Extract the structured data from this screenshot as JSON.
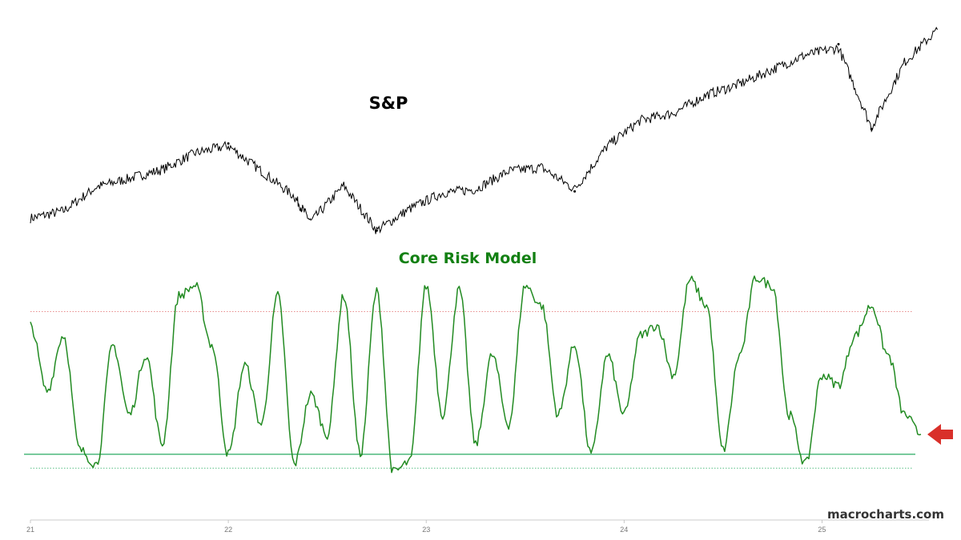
{
  "watermark": "macrocharts.com",
  "colors": {
    "sp_line": "#000000",
    "risk_line": "#228b22",
    "risk_title": "#138013",
    "upper_band": "#e06666",
    "lower_band": "#3cb371",
    "lower_dotted": "#3cb371",
    "arrow": "#d9302a",
    "axis": "#bbbbbb"
  },
  "chart_data": [
    {
      "type": "line",
      "title": "S&P",
      "x": [
        "2021-01",
        "2021-03",
        "2021-05",
        "2021-07",
        "2021-09",
        "2021-11",
        "2022-01",
        "2022-03",
        "2022-05",
        "2022-06",
        "2022-08",
        "2022-10",
        "2022-12",
        "2023-02",
        "2023-04",
        "2023-06",
        "2023-08",
        "2023-10",
        "2023-12",
        "2024-02",
        "2024-04",
        "2024-06",
        "2024-08",
        "2024-10",
        "2024-12",
        "2025-02",
        "2025-04",
        "2025-06",
        "2025-08"
      ],
      "values": [
        3750,
        3850,
        4180,
        4300,
        4420,
        4650,
        4750,
        4400,
        4050,
        3700,
        4200,
        3580,
        3880,
        4100,
        4150,
        4400,
        4450,
        4150,
        4750,
        5100,
        5200,
        5450,
        5600,
        5800,
        6000,
        6100,
        5000,
        5900,
        6350
      ],
      "highlights": [
        {
          "x": "2022-01",
          "value": 4780
        },
        {
          "x": "2022-10",
          "value": 3580
        },
        {
          "x": "2023-10",
          "value": 4120
        },
        {
          "x": "2025-02",
          "value": 6150
        },
        {
          "x": "2025-04",
          "value": 4980
        }
      ],
      "ylim": [
        3450,
        6450
      ]
    },
    {
      "type": "line",
      "title": "Core Risk Model",
      "x": [
        "2021-01",
        "2021-02",
        "2021-03",
        "2021-04",
        "2021-05",
        "2021-06",
        "2021-07",
        "2021-08",
        "2021-09",
        "2021-10",
        "2021-11",
        "2021-12",
        "2022-01",
        "2022-02",
        "2022-03",
        "2022-04",
        "2022-05",
        "2022-06",
        "2022-07",
        "2022-08",
        "2022-09",
        "2022-10",
        "2022-11",
        "2022-12",
        "2023-01",
        "2023-02",
        "2023-03",
        "2023-04",
        "2023-05",
        "2023-06",
        "2023-07",
        "2023-08",
        "2023-09",
        "2023-10",
        "2023-11",
        "2023-12",
        "2024-01",
        "2024-02",
        "2024-03",
        "2024-04",
        "2024-05",
        "2024-06",
        "2024-07",
        "2024-08",
        "2024-09",
        "2024-10",
        "2024-11",
        "2024-12",
        "2025-01",
        "2025-02",
        "2025-03",
        "2025-04",
        "2025-05",
        "2025-06",
        "2025-07"
      ],
      "values": [
        0.75,
        0.42,
        0.7,
        0.12,
        0.05,
        0.65,
        0.3,
        0.6,
        0.15,
        0.9,
        0.95,
        0.65,
        0.1,
        0.55,
        0.25,
        0.9,
        0.05,
        0.4,
        0.2,
        0.9,
        0.1,
        0.92,
        0.01,
        0.06,
        0.95,
        0.3,
        0.93,
        0.15,
        0.6,
        0.25,
        0.95,
        0.85,
        0.3,
        0.65,
        0.1,
        0.6,
        0.3,
        0.7,
        0.75,
        0.5,
        0.98,
        0.85,
        0.12,
        0.6,
        0.99,
        0.95,
        0.3,
        0.05,
        0.5,
        0.45,
        0.7,
        0.85,
        0.6,
        0.3,
        0.2
      ],
      "upper_band": 0.82,
      "lower_band": 0.1,
      "lower_dotted": 0.03,
      "ylim": [
        -0.05,
        1.1
      ],
      "current_marker": "arrow"
    }
  ],
  "x_axis": {
    "ticks": [
      "21",
      "22",
      "23",
      "24",
      "25"
    ],
    "tick_dates": [
      "2021-01",
      "2022-01",
      "2023-01",
      "2024-01",
      "2025-01"
    ]
  }
}
